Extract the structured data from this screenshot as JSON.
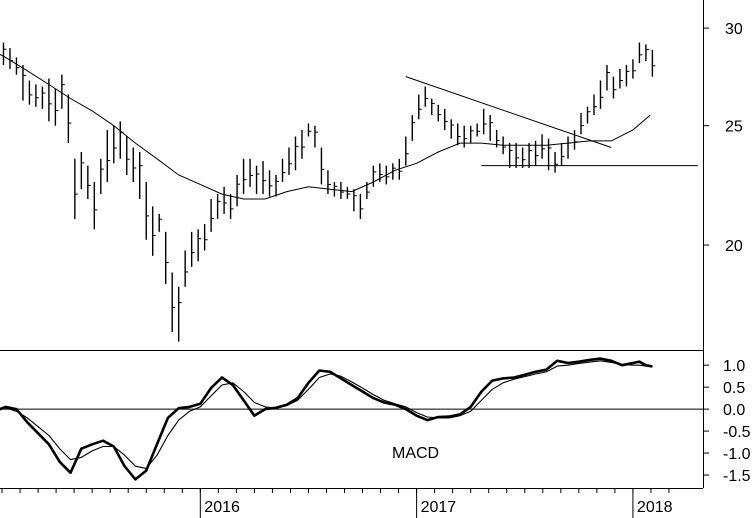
{
  "chart_data": [
    {
      "type": "ohlc",
      "scale": "log",
      "ylim": [
        16.5,
        31.5
      ],
      "y_ticks": [
        20,
        25,
        30
      ],
      "x_ticks": [
        "2016",
        "2017",
        "2018"
      ],
      "x_tick_values": [
        2016.0,
        2017.0,
        2018.0
      ],
      "bars": [
        [
          2015.0,
          28.8,
          28.0
        ],
        [
          2015.03,
          29.3,
          28.2
        ],
        [
          2015.06,
          29.5,
          28.5
        ],
        [
          2015.09,
          29.2,
          28.0
        ],
        [
          2015.12,
          28.9,
          27.8
        ],
        [
          2015.15,
          28.4,
          27.5
        ],
        [
          2015.18,
          28.0,
          26.2
        ],
        [
          2015.21,
          27.2,
          26.0
        ],
        [
          2015.24,
          27.0,
          25.9
        ],
        [
          2015.27,
          26.9,
          25.8
        ],
        [
          2015.3,
          27.3,
          25.2
        ],
        [
          2015.33,
          26.8,
          25.0
        ],
        [
          2015.36,
          27.5,
          25.8
        ],
        [
          2015.39,
          26.5,
          24.2
        ],
        [
          2015.42,
          23.5,
          21.0
        ],
        [
          2015.45,
          23.8,
          22.2
        ],
        [
          2015.48,
          23.2,
          21.8
        ],
        [
          2015.51,
          22.5,
          20.6
        ],
        [
          2015.54,
          23.5,
          22.0
        ],
        [
          2015.57,
          24.8,
          22.5
        ],
        [
          2015.6,
          25.0,
          23.3
        ],
        [
          2015.63,
          25.2,
          23.5
        ],
        [
          2015.66,
          24.5,
          22.8
        ],
        [
          2015.69,
          24.0,
          22.5
        ],
        [
          2015.72,
          23.8,
          21.8
        ],
        [
          2015.75,
          22.5,
          20.2
        ],
        [
          2015.78,
          21.5,
          19.6
        ],
        [
          2015.81,
          21.2,
          20.5
        ],
        [
          2015.84,
          20.5,
          18.6
        ],
        [
          2015.87,
          19.0,
          17.0
        ],
        [
          2015.9,
          18.5,
          16.7
        ],
        [
          2015.93,
          19.8,
          18.5
        ],
        [
          2015.96,
          20.5,
          19.2
        ],
        [
          2015.99,
          20.6,
          19.4
        ],
        [
          2016.02,
          20.8,
          19.8
        ],
        [
          2016.05,
          21.8,
          20.5
        ],
        [
          2016.08,
          22.0,
          21.0
        ],
        [
          2016.11,
          22.3,
          21.2
        ],
        [
          2016.14,
          22.0,
          21.0
        ],
        [
          2016.17,
          22.8,
          21.5
        ],
        [
          2016.2,
          23.5,
          22.0
        ],
        [
          2016.23,
          23.5,
          22.3
        ],
        [
          2016.26,
          23.2,
          22.0
        ],
        [
          2016.29,
          23.4,
          22.0
        ],
        [
          2016.32,
          23.0,
          21.9
        ],
        [
          2016.35,
          22.8,
          21.9
        ],
        [
          2016.38,
          23.5,
          22.5
        ],
        [
          2016.41,
          24.0,
          22.8
        ],
        [
          2016.44,
          24.5,
          23.0
        ],
        [
          2016.47,
          24.8,
          23.5
        ],
        [
          2016.5,
          25.1,
          24.5
        ],
        [
          2016.53,
          25.0,
          24.0
        ],
        [
          2016.56,
          24.0,
          22.4
        ],
        [
          2016.59,
          23.0,
          22.0
        ],
        [
          2016.62,
          22.5,
          21.9
        ],
        [
          2016.65,
          22.5,
          21.8
        ],
        [
          2016.68,
          22.3,
          21.8
        ],
        [
          2016.71,
          22.2,
          21.3
        ],
        [
          2016.74,
          22.0,
          21.0
        ],
        [
          2016.77,
          22.5,
          21.8
        ],
        [
          2016.8,
          23.2,
          22.3
        ],
        [
          2016.83,
          23.3,
          22.5
        ],
        [
          2016.86,
          23.2,
          22.4
        ],
        [
          2016.89,
          23.3,
          22.6
        ],
        [
          2016.92,
          23.5,
          22.6
        ],
        [
          2016.95,
          24.5,
          23.2
        ],
        [
          2016.98,
          25.5,
          24.3
        ],
        [
          2017.01,
          26.5,
          25.3
        ],
        [
          2017.04,
          26.9,
          25.9
        ],
        [
          2017.07,
          26.3,
          25.5
        ],
        [
          2017.1,
          26.0,
          25.2
        ],
        [
          2017.13,
          25.8,
          24.8
        ],
        [
          2017.16,
          25.3,
          24.4
        ],
        [
          2017.19,
          25.1,
          24.1
        ],
        [
          2017.22,
          25.0,
          24.0
        ],
        [
          2017.25,
          25.0,
          24.2
        ],
        [
          2017.28,
          25.1,
          24.5
        ],
        [
          2017.31,
          25.8,
          24.6
        ],
        [
          2017.34,
          25.5,
          24.3
        ],
        [
          2017.37,
          24.8,
          24.0
        ],
        [
          2017.4,
          24.5,
          23.7
        ],
        [
          2017.43,
          24.2,
          23.1
        ],
        [
          2017.46,
          24.2,
          23.1
        ],
        [
          2017.49,
          24.0,
          23.1
        ],
        [
          2017.52,
          24.2,
          23.1
        ],
        [
          2017.55,
          24.3,
          23.2
        ],
        [
          2017.58,
          24.6,
          23.5
        ],
        [
          2017.61,
          24.4,
          23.0
        ],
        [
          2017.64,
          23.8,
          22.9
        ],
        [
          2017.67,
          24.2,
          23.2
        ],
        [
          2017.7,
          24.5,
          23.5
        ],
        [
          2017.73,
          24.8,
          23.9
        ],
        [
          2017.76,
          25.6,
          24.6
        ],
        [
          2017.79,
          25.9,
          25.1
        ],
        [
          2017.82,
          26.5,
          25.5
        ],
        [
          2017.85,
          27.2,
          25.8
        ],
        [
          2017.88,
          28.0,
          26.7
        ],
        [
          2017.91,
          27.4,
          26.3
        ],
        [
          2017.94,
          27.8,
          26.8
        ],
        [
          2017.97,
          28.0,
          26.9
        ],
        [
          2018.0,
          28.3,
          27.3
        ],
        [
          2018.03,
          29.2,
          28.1
        ],
        [
          2018.06,
          29.1,
          28.2
        ],
        [
          2018.09,
          28.8,
          27.4
        ]
      ],
      "moving_average": [
        [
          2015.0,
          29.0
        ],
        [
          2015.1,
          28.4
        ],
        [
          2015.2,
          27.7
        ],
        [
          2015.3,
          27.0
        ],
        [
          2015.4,
          26.3
        ],
        [
          2015.5,
          25.7
        ],
        [
          2015.6,
          25.0
        ],
        [
          2015.7,
          24.2
        ],
        [
          2015.8,
          23.5
        ],
        [
          2015.9,
          22.8
        ],
        [
          2016.0,
          22.4
        ],
        [
          2016.1,
          22.0
        ],
        [
          2016.2,
          21.8
        ],
        [
          2016.3,
          21.8
        ],
        [
          2016.4,
          22.1
        ],
        [
          2016.5,
          22.3
        ],
        [
          2016.6,
          22.2
        ],
        [
          2016.7,
          22.1
        ],
        [
          2016.8,
          22.5
        ],
        [
          2016.9,
          23.0
        ],
        [
          2017.0,
          23.3
        ],
        [
          2017.1,
          23.8
        ],
        [
          2017.2,
          24.2
        ],
        [
          2017.3,
          24.2
        ],
        [
          2017.4,
          24.1
        ],
        [
          2017.5,
          24.1
        ],
        [
          2017.6,
          24.1
        ],
        [
          2017.7,
          24.2
        ],
        [
          2017.8,
          24.3
        ],
        [
          2017.9,
          24.3
        ],
        [
          2018.0,
          24.8
        ],
        [
          2018.08,
          25.5
        ]
      ],
      "trendlines": [
        {
          "kind": "resistance",
          "points": [
            [
              2016.95,
              27.4
            ],
            [
              2017.9,
              24.0
            ]
          ]
        },
        {
          "kind": "support",
          "points": [
            [
              2017.3,
              23.2
            ],
            [
              2018.3,
              23.2
            ]
          ]
        }
      ]
    },
    {
      "type": "line",
      "label": "MACD",
      "ylim": [
        -1.75,
        1.3
      ],
      "y_ticks": [
        1.0,
        0.5,
        0.0,
        -0.5,
        -1.0,
        -1.5
      ],
      "y_tick_labels": [
        "1.0",
        "0.5",
        "0.0",
        "-0.5",
        "-1.0",
        "-1.5"
      ],
      "zero_line": true,
      "series": [
        {
          "style": "thick",
          "x": [
            2015.0,
            2015.05,
            2015.1,
            2015.15,
            2015.2,
            2015.25,
            2015.3,
            2015.35,
            2015.4,
            2015.45,
            2015.5,
            2015.55,
            2015.6,
            2015.65,
            2015.7,
            2015.75,
            2015.8,
            2015.85,
            2015.9,
            2015.95,
            2016.0,
            2016.05,
            2016.1,
            2016.15,
            2016.2,
            2016.25,
            2016.3,
            2016.35,
            2016.4,
            2016.45,
            2016.5,
            2016.55,
            2016.6,
            2016.65,
            2016.7,
            2016.75,
            2016.8,
            2016.85,
            2016.9,
            2016.95,
            2017.0,
            2017.05,
            2017.1,
            2017.15,
            2017.2,
            2017.25,
            2017.3,
            2017.35,
            2017.4,
            2017.45,
            2017.5,
            2017.55,
            2017.6,
            2017.65,
            2017.7,
            2017.75,
            2017.8,
            2017.85,
            2017.9,
            2017.95,
            2018.0,
            2018.03,
            2018.06,
            2018.09
          ],
          "y": [
            0.0,
            -0.05,
            0.05,
            0.0,
            -0.3,
            -0.55,
            -0.8,
            -1.2,
            -1.45,
            -0.9,
            -0.8,
            -0.72,
            -0.85,
            -1.3,
            -1.6,
            -1.4,
            -0.8,
            -0.2,
            0.02,
            0.05,
            0.12,
            0.48,
            0.72,
            0.55,
            0.2,
            -0.15,
            0.0,
            0.03,
            0.1,
            0.25,
            0.6,
            0.88,
            0.85,
            0.7,
            0.55,
            0.4,
            0.25,
            0.15,
            0.1,
            0.0,
            -0.15,
            -0.25,
            -0.18,
            -0.17,
            -0.12,
            0.05,
            0.4,
            0.65,
            0.7,
            0.72,
            0.78,
            0.85,
            0.9,
            1.1,
            1.05,
            1.08,
            1.12,
            1.15,
            1.1,
            1.0,
            1.05,
            1.08,
            1.0,
            0.97
          ]
        },
        {
          "style": "thin",
          "x": [
            2015.0,
            2015.05,
            2015.1,
            2015.15,
            2015.2,
            2015.25,
            2015.3,
            2015.35,
            2015.4,
            2015.45,
            2015.5,
            2015.55,
            2015.6,
            2015.65,
            2015.7,
            2015.75,
            2015.8,
            2015.85,
            2015.9,
            2015.95,
            2016.0,
            2016.05,
            2016.1,
            2016.15,
            2016.2,
            2016.25,
            2016.3,
            2016.35,
            2016.4,
            2016.45,
            2016.5,
            2016.55,
            2016.6,
            2016.65,
            2016.7,
            2016.75,
            2016.8,
            2016.85,
            2016.9,
            2016.95,
            2017.0,
            2017.05,
            2017.1,
            2017.15,
            2017.2,
            2017.25,
            2017.3,
            2017.35,
            2017.4,
            2017.45,
            2017.5,
            2017.55,
            2017.6,
            2017.65,
            2017.7,
            2017.75,
            2017.8,
            2017.85,
            2017.9,
            2017.95,
            2018.0,
            2018.03,
            2018.06,
            2018.09
          ],
          "y": [
            0.0,
            0.02,
            0.03,
            -0.05,
            -0.2,
            -0.4,
            -0.6,
            -0.9,
            -1.15,
            -1.1,
            -0.95,
            -0.85,
            -0.85,
            -1.05,
            -1.3,
            -1.35,
            -1.05,
            -0.6,
            -0.25,
            -0.05,
            0.05,
            0.3,
            0.55,
            0.6,
            0.4,
            0.15,
            0.05,
            0.02,
            0.08,
            0.2,
            0.45,
            0.72,
            0.8,
            0.75,
            0.62,
            0.48,
            0.33,
            0.2,
            0.12,
            0.05,
            -0.08,
            -0.18,
            -0.2,
            -0.2,
            -0.15,
            -0.05,
            0.2,
            0.45,
            0.6,
            0.68,
            0.74,
            0.8,
            0.85,
            0.98,
            1.0,
            1.04,
            1.07,
            1.1,
            1.06,
            1.02,
            1.0,
            1.0,
            0.98,
            0.96
          ]
        }
      ]
    }
  ]
}
